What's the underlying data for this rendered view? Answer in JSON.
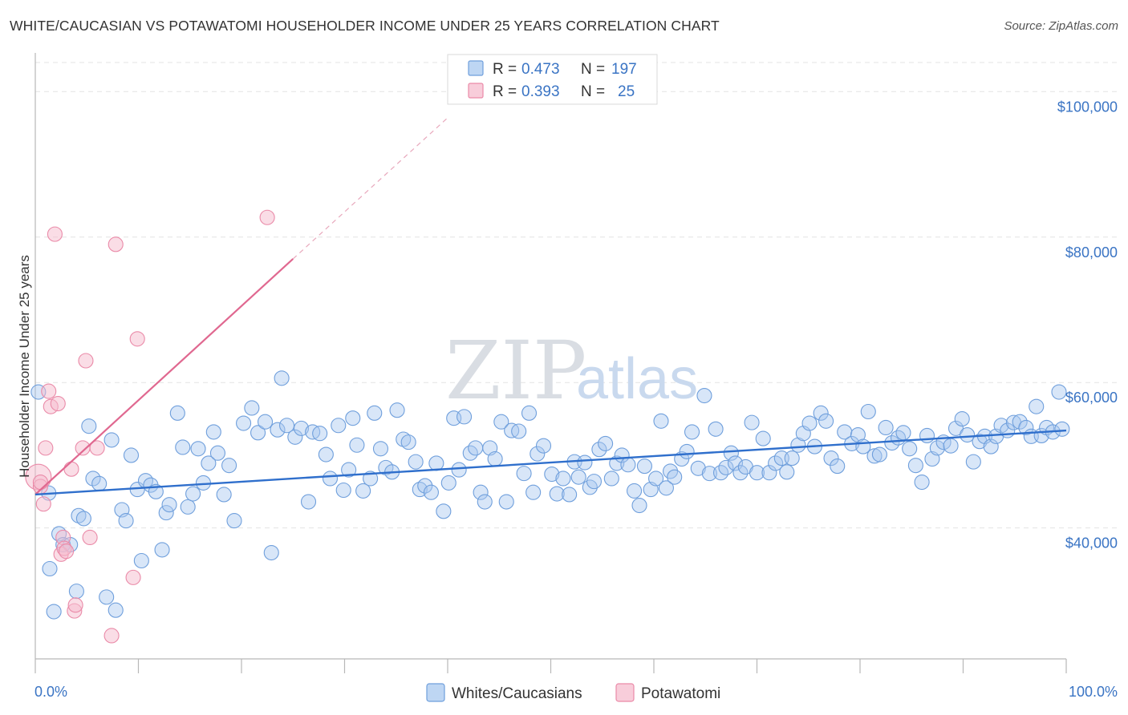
{
  "header": {
    "title": "WHITE/CAUCASIAN VS POTAWATOMI HOUSEHOLDER INCOME UNDER 25 YEARS CORRELATION CHART",
    "source": "Source: ZipAtlas.com"
  },
  "watermark": {
    "zip": "ZIP",
    "atlas": "atlas"
  },
  "colors": {
    "white_fill": "#a8c8ef",
    "white_stroke": "#6f9fdc",
    "white_line": "#2f6fcc",
    "pota_fill": "#f6bccd",
    "pota_stroke": "#ea8aa8",
    "pota_line": "#e06890",
    "tick_text": "#3a74c4",
    "grid": "#e3e3e3"
  },
  "legend": {
    "rows": [
      {
        "r_label": "R = ",
        "r_value": "0.473",
        "n_label": "N = ",
        "n_value": "197"
      },
      {
        "r_label": "R = ",
        "r_value": "0.393",
        "n_label": "N = ",
        "n_value": "25"
      }
    ]
  },
  "chart_data": {
    "type": "scatter",
    "title": "WHITE/CAUCASIAN VS POTAWATOMI HOUSEHOLDER INCOME UNDER 25 YEARS CORRELATION CHART",
    "xlabel": "",
    "ylabel": "Householder Income Under 25 years",
    "xlim": [
      0,
      100
    ],
    "ylim": [
      22000,
      104000
    ],
    "x_tick_labels": [
      "0.0%",
      "100.0%"
    ],
    "y_ticks": [
      40000,
      60000,
      80000,
      100000
    ],
    "y_tick_labels": [
      "$40,000",
      "$60,000",
      "$80,000",
      "$100,000"
    ],
    "grid": true,
    "legend_position": "top-center",
    "series": [
      {
        "name": "Whites/Caucasians",
        "r": 0.473,
        "n": 197,
        "trend": {
          "x": [
            0,
            100
          ],
          "y": [
            44600,
            53400
          ]
        },
        "points": [
          [
            0.3,
            58700
          ],
          [
            1.3,
            44800
          ],
          [
            1.4,
            34400
          ],
          [
            1.8,
            28500
          ],
          [
            2.3,
            39200
          ],
          [
            2.7,
            37700
          ],
          [
            3.4,
            37700
          ],
          [
            4.0,
            31300
          ],
          [
            4.2,
            41700
          ],
          [
            4.7,
            41300
          ],
          [
            5.2,
            54000
          ],
          [
            5.6,
            46800
          ],
          [
            6.2,
            46100
          ],
          [
            6.9,
            30500
          ],
          [
            7.4,
            52100
          ],
          [
            7.8,
            28700
          ],
          [
            8.4,
            42500
          ],
          [
            8.8,
            41000
          ],
          [
            9.3,
            50000
          ],
          [
            9.9,
            45300
          ],
          [
            10.3,
            35500
          ],
          [
            10.7,
            46500
          ],
          [
            11.2,
            45900
          ],
          [
            11.7,
            45000
          ],
          [
            12.3,
            37000
          ],
          [
            12.7,
            42100
          ],
          [
            13.0,
            43200
          ],
          [
            13.8,
            55800
          ],
          [
            14.3,
            51100
          ],
          [
            14.8,
            42900
          ],
          [
            15.3,
            44700
          ],
          [
            15.8,
            50900
          ],
          [
            16.3,
            46200
          ],
          [
            16.8,
            48900
          ],
          [
            17.3,
            53200
          ],
          [
            17.7,
            50300
          ],
          [
            18.3,
            44600
          ],
          [
            18.8,
            48600
          ],
          [
            19.3,
            41000
          ],
          [
            20.2,
            54400
          ],
          [
            21.0,
            56500
          ],
          [
            21.6,
            53100
          ],
          [
            22.3,
            54600
          ],
          [
            22.9,
            36600
          ],
          [
            23.5,
            53500
          ],
          [
            23.9,
            60600
          ],
          [
            24.4,
            54100
          ],
          [
            25.2,
            52500
          ],
          [
            25.8,
            53700
          ],
          [
            26.5,
            43600
          ],
          [
            26.9,
            53200
          ],
          [
            27.6,
            53000
          ],
          [
            28.2,
            50100
          ],
          [
            28.6,
            46800
          ],
          [
            29.4,
            54100
          ],
          [
            29.9,
            45200
          ],
          [
            30.4,
            48000
          ],
          [
            30.8,
            55100
          ],
          [
            31.2,
            51400
          ],
          [
            31.8,
            45100
          ],
          [
            32.5,
            46800
          ],
          [
            32.9,
            55800
          ],
          [
            33.5,
            50900
          ],
          [
            34.0,
            48300
          ],
          [
            34.6,
            47700
          ],
          [
            35.1,
            56200
          ],
          [
            35.7,
            52200
          ],
          [
            36.2,
            51800
          ],
          [
            36.9,
            49100
          ],
          [
            37.3,
            45300
          ],
          [
            37.8,
            45800
          ],
          [
            38.4,
            44900
          ],
          [
            38.9,
            48900
          ],
          [
            39.6,
            42300
          ],
          [
            40.1,
            46200
          ],
          [
            40.6,
            55100
          ],
          [
            41.1,
            48000
          ],
          [
            41.6,
            55300
          ],
          [
            42.2,
            50300
          ],
          [
            42.7,
            51000
          ],
          [
            43.2,
            44900
          ],
          [
            43.6,
            43600
          ],
          [
            44.1,
            51000
          ],
          [
            44.6,
            49500
          ],
          [
            45.2,
            54600
          ],
          [
            45.7,
            43600
          ],
          [
            46.2,
            53400
          ],
          [
            46.9,
            53300
          ],
          [
            47.4,
            47500
          ],
          [
            47.9,
            55800
          ],
          [
            48.3,
            44900
          ],
          [
            48.7,
            50200
          ],
          [
            49.3,
            51300
          ],
          [
            50.1,
            47400
          ],
          [
            50.6,
            44700
          ],
          [
            51.2,
            46800
          ],
          [
            51.8,
            44600
          ],
          [
            52.3,
            49100
          ],
          [
            52.7,
            47000
          ],
          [
            53.3,
            49000
          ],
          [
            53.8,
            45600
          ],
          [
            54.2,
            46400
          ],
          [
            54.7,
            50800
          ],
          [
            55.3,
            51600
          ],
          [
            55.9,
            46800
          ],
          [
            56.4,
            48900
          ],
          [
            56.9,
            50000
          ],
          [
            57.5,
            48700
          ],
          [
            58.1,
            45100
          ],
          [
            58.6,
            43100
          ],
          [
            59.1,
            48500
          ],
          [
            59.7,
            45300
          ],
          [
            60.2,
            46800
          ],
          [
            60.7,
            54700
          ],
          [
            61.2,
            45500
          ],
          [
            61.6,
            47800
          ],
          [
            62.0,
            47000
          ],
          [
            62.7,
            49500
          ],
          [
            63.2,
            50500
          ],
          [
            63.7,
            53200
          ],
          [
            64.3,
            48200
          ],
          [
            64.9,
            58200
          ],
          [
            65.4,
            47500
          ],
          [
            66.0,
            53600
          ],
          [
            66.5,
            47600
          ],
          [
            67.0,
            48300
          ],
          [
            67.5,
            50300
          ],
          [
            67.9,
            48900
          ],
          [
            68.4,
            47600
          ],
          [
            68.9,
            48400
          ],
          [
            69.5,
            54500
          ],
          [
            70.0,
            47600
          ],
          [
            70.6,
            52300
          ],
          [
            71.2,
            47600
          ],
          [
            71.8,
            48900
          ],
          [
            72.4,
            49600
          ],
          [
            72.9,
            47700
          ],
          [
            73.4,
            49600
          ],
          [
            74.0,
            51400
          ],
          [
            74.5,
            53000
          ],
          [
            75.1,
            54400
          ],
          [
            75.6,
            51200
          ],
          [
            76.2,
            55800
          ],
          [
            76.7,
            54700
          ],
          [
            77.2,
            49600
          ],
          [
            77.8,
            48500
          ],
          [
            78.5,
            53200
          ],
          [
            79.2,
            51600
          ],
          [
            79.8,
            52800
          ],
          [
            80.3,
            51200
          ],
          [
            80.8,
            56000
          ],
          [
            81.4,
            49900
          ],
          [
            81.9,
            50100
          ],
          [
            82.5,
            53800
          ],
          [
            83.1,
            51700
          ],
          [
            83.7,
            52400
          ],
          [
            84.2,
            53100
          ],
          [
            84.8,
            50900
          ],
          [
            85.4,
            48600
          ],
          [
            86.0,
            46300
          ],
          [
            86.5,
            52700
          ],
          [
            87.0,
            49500
          ],
          [
            87.5,
            51000
          ],
          [
            88.1,
            51800
          ],
          [
            88.8,
            51300
          ],
          [
            89.3,
            53700
          ],
          [
            89.9,
            55000
          ],
          [
            90.4,
            52800
          ],
          [
            91.0,
            49100
          ],
          [
            91.6,
            51900
          ],
          [
            92.1,
            52600
          ],
          [
            92.7,
            51200
          ],
          [
            93.2,
            52600
          ],
          [
            93.7,
            54100
          ],
          [
            94.3,
            53400
          ],
          [
            94.9,
            54500
          ],
          [
            95.5,
            54600
          ],
          [
            96.1,
            53800
          ],
          [
            96.6,
            52600
          ],
          [
            97.1,
            56700
          ],
          [
            97.6,
            52700
          ],
          [
            98.1,
            53800
          ],
          [
            98.7,
            53200
          ],
          [
            99.3,
            58700
          ],
          [
            99.6,
            53600
          ]
        ]
      },
      {
        "name": "Potawatomi",
        "r": 0.393,
        "n": 25,
        "trend": {
          "x": [
            0,
            25
          ],
          "y": [
            44600,
            77000
          ]
        },
        "trend_extension": {
          "x": [
            25,
            40
          ],
          "y": [
            77000,
            96400
          ]
        },
        "points": [
          [
            0.3,
            47000
          ],
          [
            0.5,
            45700
          ],
          [
            0.8,
            43300
          ],
          [
            1.0,
            51000
          ],
          [
            1.3,
            58800
          ],
          [
            1.5,
            56700
          ],
          [
            1.9,
            80400
          ],
          [
            2.2,
            57100
          ],
          [
            2.5,
            36400
          ],
          [
            2.7,
            38700
          ],
          [
            2.8,
            37200
          ],
          [
            3.0,
            36800
          ],
          [
            3.5,
            48100
          ],
          [
            3.8,
            28600
          ],
          [
            3.9,
            29400
          ],
          [
            4.6,
            51000
          ],
          [
            4.9,
            63000
          ],
          [
            5.3,
            38700
          ],
          [
            6.0,
            51000
          ],
          [
            7.4,
            25200
          ],
          [
            7.8,
            79000
          ],
          [
            9.5,
            33200
          ],
          [
            9.9,
            66000
          ],
          [
            22.5,
            82700
          ],
          [
            0.5,
            46300
          ]
        ]
      }
    ]
  },
  "bottom_legend": [
    {
      "label": "Whites/Caucasians"
    },
    {
      "label": "Potawatomi"
    }
  ]
}
